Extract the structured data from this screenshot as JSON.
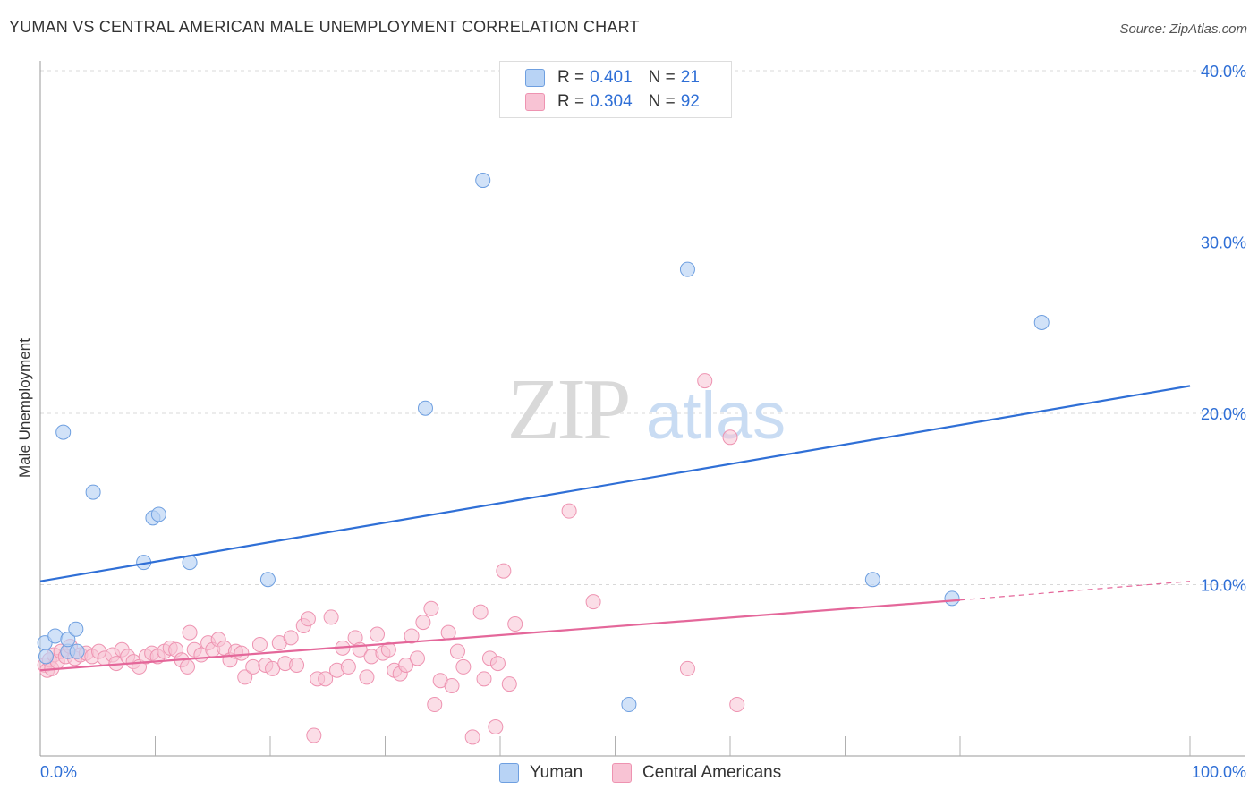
{
  "title": "YUMAN VS CENTRAL AMERICAN MALE UNEMPLOYMENT CORRELATION CHART",
  "source": "Source: ZipAtlas.com",
  "watermark": {
    "zip": "ZIP",
    "atlas": "atlas"
  },
  "legend": {
    "r_label": "R =",
    "n_label": "N =",
    "series": [
      {
        "name": "Yuman",
        "r": "0.401",
        "n": "21"
      },
      {
        "name": "Central Americans",
        "r": "0.304",
        "n": "92"
      }
    ]
  },
  "colors": {
    "yuman_fill": "#b8d3f5",
    "yuman_stroke": "#6e9fe0",
    "yuman_line": "#2f6fd6",
    "central_fill": "#f8c3d4",
    "central_stroke": "#ee93b1",
    "central_line": "#e4679a",
    "axis_text": "#2f6fd6",
    "grid": "#d8d8d8"
  },
  "chart_data": {
    "type": "scatter",
    "title": "YUMAN VS CENTRAL AMERICAN MALE UNEMPLOYMENT CORRELATION CHART",
    "xlabel": "",
    "ylabel": "Male Unemployment",
    "xlim": [
      0,
      100
    ],
    "ylim": [
      0,
      40
    ],
    "x_tick_labels": [
      "0.0%",
      "100.0%"
    ],
    "y_ticks": [
      10,
      20,
      30,
      40
    ],
    "y_tick_labels": [
      "10.0%",
      "20.0%",
      "30.0%",
      "40.0%"
    ],
    "grid": true,
    "series": [
      {
        "name": "Yuman",
        "points": [
          [
            0.4,
            6.6
          ],
          [
            0.5,
            5.8
          ],
          [
            1.3,
            7.0
          ],
          [
            2.0,
            18.9
          ],
          [
            2.4,
            6.1
          ],
          [
            2.4,
            6.8
          ],
          [
            3.1,
            7.4
          ],
          [
            3.2,
            6.1
          ],
          [
            4.6,
            15.4
          ],
          [
            9.0,
            11.3
          ],
          [
            9.8,
            13.9
          ],
          [
            10.3,
            14.1
          ],
          [
            13.0,
            11.3
          ],
          [
            19.8,
            10.3
          ],
          [
            33.5,
            20.3
          ],
          [
            38.5,
            33.6
          ],
          [
            51.2,
            3.0
          ],
          [
            56.3,
            28.4
          ],
          [
            72.4,
            10.3
          ],
          [
            79.3,
            9.2
          ],
          [
            87.1,
            25.3
          ]
        ],
        "trend": {
          "x": [
            0,
            100
          ],
          "y": [
            10.2,
            21.6
          ]
        }
      },
      {
        "name": "Central Americans",
        "points": [
          [
            0.4,
            5.3
          ],
          [
            0.6,
            5.0
          ],
          [
            0.8,
            5.6
          ],
          [
            1.0,
            5.1
          ],
          [
            1.2,
            5.9
          ],
          [
            1.5,
            5.5
          ],
          [
            1.8,
            6.1
          ],
          [
            2.2,
            5.8
          ],
          [
            2.6,
            6.4
          ],
          [
            3.0,
            5.7
          ],
          [
            3.5,
            5.9
          ],
          [
            4.0,
            6.0
          ],
          [
            4.5,
            5.8
          ],
          [
            5.1,
            6.1
          ],
          [
            5.6,
            5.7
          ],
          [
            6.3,
            5.9
          ],
          [
            6.6,
            5.4
          ],
          [
            7.1,
            6.2
          ],
          [
            7.6,
            5.8
          ],
          [
            8.1,
            5.5
          ],
          [
            8.6,
            5.2
          ],
          [
            9.2,
            5.8
          ],
          [
            9.7,
            6.0
          ],
          [
            10.2,
            5.8
          ],
          [
            10.8,
            6.1
          ],
          [
            11.3,
            6.3
          ],
          [
            11.8,
            6.2
          ],
          [
            12.3,
            5.6
          ],
          [
            12.8,
            5.2
          ],
          [
            13.0,
            7.2
          ],
          [
            13.4,
            6.2
          ],
          [
            14.0,
            5.9
          ],
          [
            14.6,
            6.6
          ],
          [
            15.0,
            6.2
          ],
          [
            15.5,
            6.8
          ],
          [
            16.0,
            6.3
          ],
          [
            16.5,
            5.6
          ],
          [
            17.0,
            6.1
          ],
          [
            17.5,
            6.0
          ],
          [
            17.8,
            4.6
          ],
          [
            18.5,
            5.2
          ],
          [
            19.1,
            6.5
          ],
          [
            19.6,
            5.3
          ],
          [
            20.2,
            5.1
          ],
          [
            20.8,
            6.6
          ],
          [
            21.3,
            5.4
          ],
          [
            21.8,
            6.9
          ],
          [
            22.3,
            5.3
          ],
          [
            22.9,
            7.6
          ],
          [
            23.3,
            8.0
          ],
          [
            23.8,
            1.2
          ],
          [
            24.1,
            4.5
          ],
          [
            24.8,
            4.5
          ],
          [
            25.3,
            8.1
          ],
          [
            25.8,
            5.0
          ],
          [
            26.3,
            6.3
          ],
          [
            26.8,
            5.2
          ],
          [
            27.4,
            6.9
          ],
          [
            27.8,
            6.2
          ],
          [
            28.4,
            4.6
          ],
          [
            28.8,
            5.8
          ],
          [
            29.3,
            7.1
          ],
          [
            29.8,
            6.0
          ],
          [
            30.3,
            6.2
          ],
          [
            30.8,
            5.0
          ],
          [
            31.3,
            4.8
          ],
          [
            31.8,
            5.3
          ],
          [
            32.3,
            7.0
          ],
          [
            32.8,
            5.7
          ],
          [
            33.3,
            7.8
          ],
          [
            34.0,
            8.6
          ],
          [
            34.3,
            3.0
          ],
          [
            34.8,
            4.4
          ],
          [
            35.5,
            7.2
          ],
          [
            35.8,
            4.1
          ],
          [
            36.3,
            6.1
          ],
          [
            36.8,
            5.2
          ],
          [
            37.6,
            1.1
          ],
          [
            38.3,
            8.4
          ],
          [
            38.6,
            4.5
          ],
          [
            39.1,
            5.7
          ],
          [
            39.6,
            1.7
          ],
          [
            39.8,
            5.4
          ],
          [
            40.3,
            10.8
          ],
          [
            40.8,
            4.2
          ],
          [
            41.3,
            7.7
          ],
          [
            46.0,
            14.3
          ],
          [
            48.1,
            9.0
          ],
          [
            56.3,
            5.1
          ],
          [
            57.8,
            21.9
          ],
          [
            60.0,
            18.6
          ],
          [
            60.6,
            3.0
          ]
        ],
        "trend": {
          "x": [
            0,
            80
          ],
          "y": [
            5.0,
            9.1
          ]
        },
        "trend_extension": {
          "x": [
            80,
            100
          ],
          "y": [
            9.1,
            10.2
          ]
        }
      }
    ]
  }
}
